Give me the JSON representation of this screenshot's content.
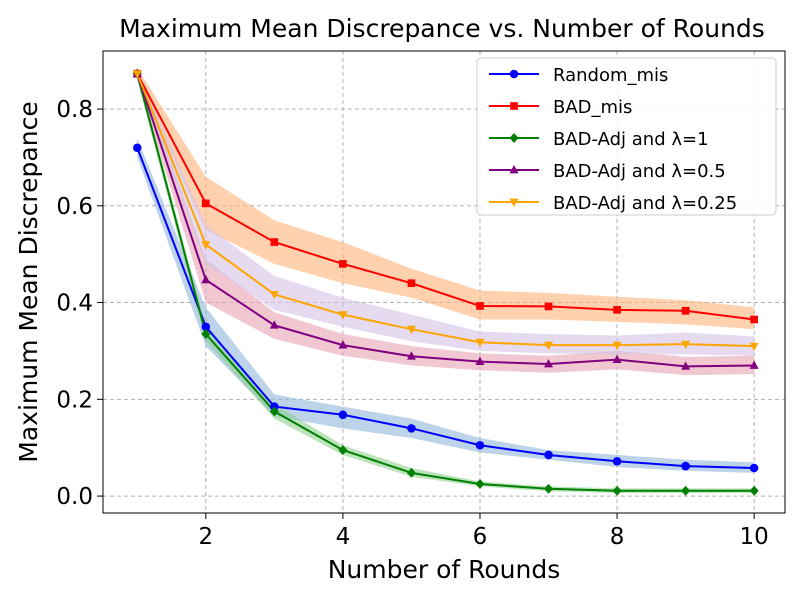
{
  "chart_data": {
    "type": "line",
    "title": "Maximum Mean Discrepance vs. Number of Rounds",
    "xlabel": "Number of Rounds",
    "ylabel": "Maximum Mean Discrepance",
    "xlim": [
      0.5,
      10.45
    ],
    "ylim": [
      -0.035,
      0.92
    ],
    "xticks": [
      2,
      4,
      6,
      8,
      10
    ],
    "yticks": [
      0.0,
      0.2,
      0.4,
      0.6,
      0.8
    ],
    "xtick_labels": [
      "2",
      "4",
      "6",
      "8",
      "10"
    ],
    "ytick_labels": [
      "0.0",
      "0.2",
      "0.4",
      "0.6",
      "0.8"
    ],
    "grid": true,
    "legend_position": "upper-right",
    "x": [
      1,
      2,
      3,
      4,
      5,
      6,
      7,
      8,
      9,
      10
    ],
    "series": [
      {
        "name": "Random_mis",
        "color": "#0000ff",
        "band_color": "#8fb5dc",
        "marker": "circle",
        "values": [
          0.72,
          0.35,
          0.185,
          0.168,
          0.14,
          0.105,
          0.085,
          0.072,
          0.062,
          0.058
        ],
        "band_lower": [
          0.7,
          0.31,
          0.165,
          0.14,
          0.12,
          0.09,
          0.075,
          0.06,
          0.052,
          0.048
        ],
        "band_upper": [
          0.74,
          0.39,
          0.21,
          0.185,
          0.16,
          0.12,
          0.095,
          0.085,
          0.075,
          0.07
        ]
      },
      {
        "name": "BAD_mis",
        "color": "#ff0000",
        "band_color": "#ffb27a",
        "marker": "square",
        "values": [
          0.873,
          0.605,
          0.525,
          0.48,
          0.44,
          0.393,
          0.392,
          0.385,
          0.383,
          0.365
        ],
        "band_lower": [
          0.86,
          0.55,
          0.48,
          0.44,
          0.41,
          0.365,
          0.365,
          0.36,
          0.355,
          0.345
        ],
        "band_upper": [
          0.885,
          0.66,
          0.57,
          0.525,
          0.47,
          0.425,
          0.42,
          0.412,
          0.405,
          0.39
        ]
      },
      {
        "name": "BAD-Adj and λ=1",
        "color": "#008000",
        "band_color": "#8fd18f",
        "marker": "diamond",
        "values": [
          0.873,
          0.335,
          0.175,
          0.095,
          0.048,
          0.025,
          0.015,
          0.011,
          0.011,
          0.011
        ],
        "band_lower": [
          0.86,
          0.32,
          0.16,
          0.085,
          0.04,
          0.02,
          0.01,
          0.006,
          0.006,
          0.006
        ],
        "band_upper": [
          0.885,
          0.35,
          0.19,
          0.105,
          0.058,
          0.03,
          0.02,
          0.016,
          0.016,
          0.016
        ]
      },
      {
        "name": "BAD-Adj and λ=0.5",
        "color": "#800080",
        "band_color": "#e8a3b3",
        "marker": "triangle-up",
        "values": [
          0.873,
          0.447,
          0.353,
          0.312,
          0.289,
          0.278,
          0.273,
          0.282,
          0.268,
          0.27
        ],
        "band_lower": [
          0.86,
          0.4,
          0.325,
          0.29,
          0.27,
          0.26,
          0.255,
          0.262,
          0.25,
          0.252
        ],
        "band_upper": [
          0.885,
          0.49,
          0.38,
          0.335,
          0.31,
          0.295,
          0.29,
          0.3,
          0.288,
          0.29
        ]
      },
      {
        "name": "BAD-Adj and λ=0.25",
        "color": "#ffa500",
        "band_color": "#d4c2e6",
        "marker": "triangle-down",
        "values": [
          0.873,
          0.52,
          0.417,
          0.375,
          0.345,
          0.318,
          0.312,
          0.312,
          0.314,
          0.31
        ],
        "band_lower": [
          0.86,
          0.48,
          0.385,
          0.35,
          0.32,
          0.3,
          0.295,
          0.293,
          0.293,
          0.29
        ],
        "band_upper": [
          0.885,
          0.56,
          0.455,
          0.41,
          0.375,
          0.34,
          0.335,
          0.332,
          0.338,
          0.33
        ]
      }
    ]
  }
}
